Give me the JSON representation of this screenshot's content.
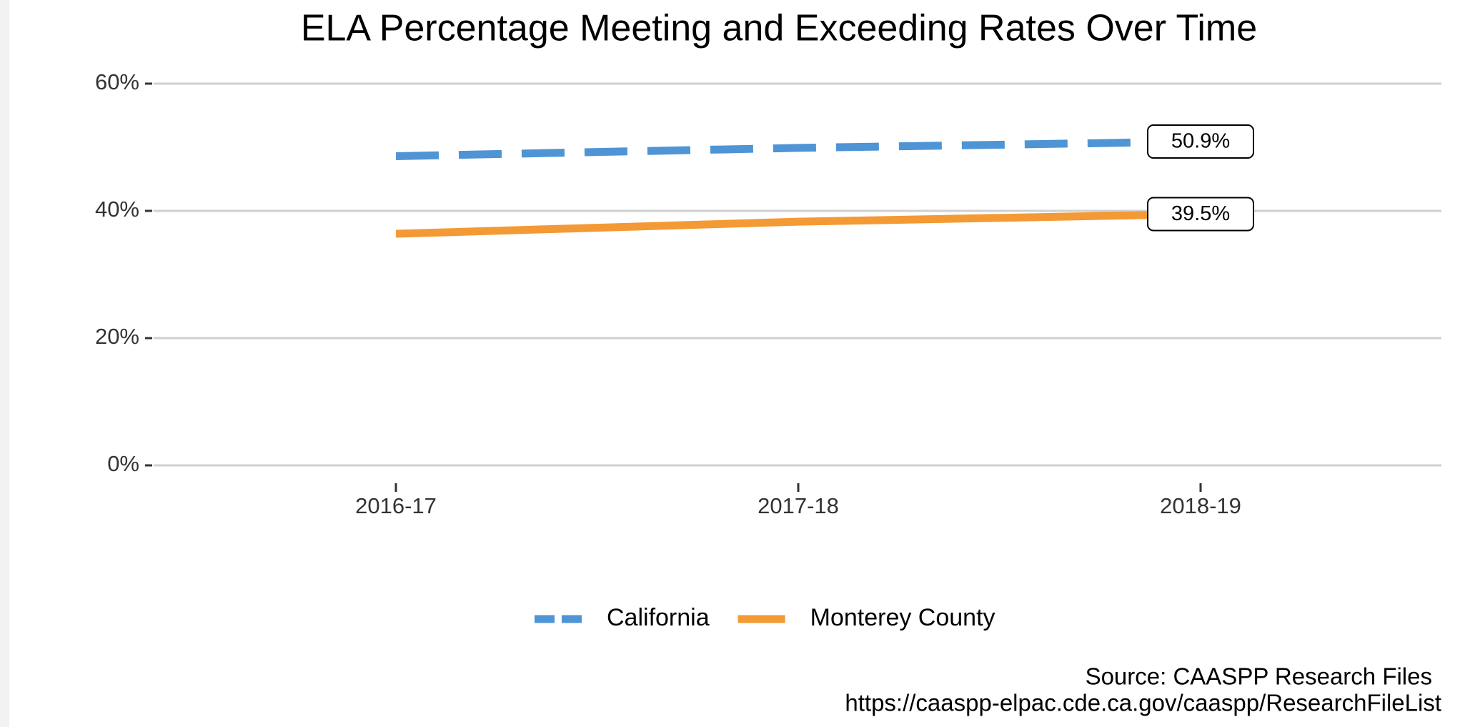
{
  "chart_data": {
    "type": "line",
    "title": "ELA Percentage Meeting and Exceeding Rates Over Time",
    "categories": [
      "2016-17",
      "2017-18",
      "2018-19"
    ],
    "series": [
      {
        "name": "California",
        "color": "#4f94d4",
        "dash": true,
        "values": [
          48.6,
          49.9,
          50.9
        ],
        "value_labels": [
          null,
          null,
          "50.9%"
        ]
      },
      {
        "name": "Monterey County",
        "color": "#f39a35",
        "dash": false,
        "values": [
          36.4,
          38.3,
          39.5
        ],
        "value_labels": [
          null,
          null,
          "39.5%"
        ]
      }
    ],
    "ylim": [
      0,
      60
    ],
    "yticks": [
      {
        "value": 0,
        "label": "0%"
      },
      {
        "value": 20,
        "label": "20%"
      },
      {
        "value": 40,
        "label": "40%"
      },
      {
        "value": 60,
        "label": "60%"
      }
    ],
    "grid": true,
    "legend": "bottom",
    "caption": [
      "Source: CAASPP Research Files",
      "https://caaspp-elpac.cde.ca.gov/caaspp/ResearchFileList"
    ]
  }
}
